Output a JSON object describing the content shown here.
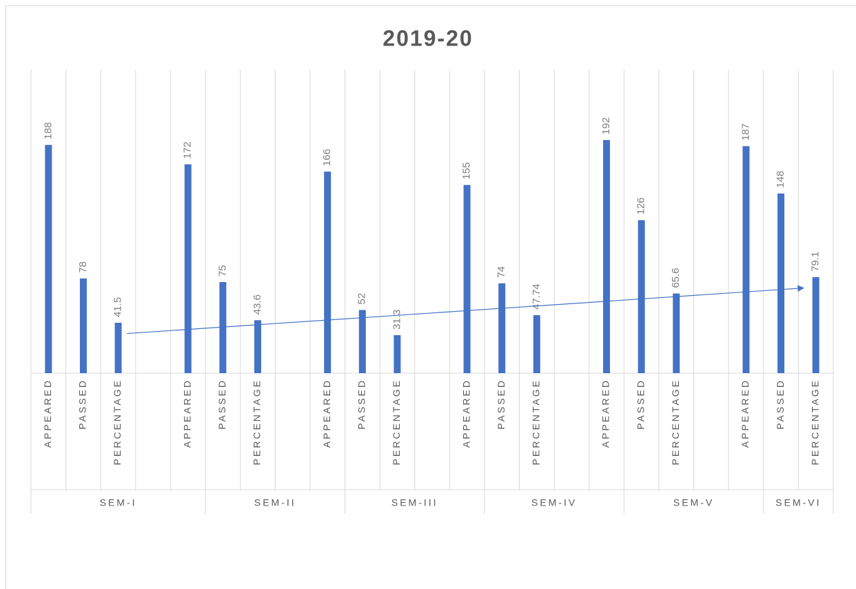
{
  "chart_data": {
    "type": "bar",
    "title": "2019-20",
    "categories": [
      {
        "label": "APPEARED",
        "group": "SEM-I"
      },
      {
        "label": "PASSED",
        "group": "SEM-I"
      },
      {
        "label": "PERCENTAGE",
        "group": "SEM-I"
      },
      {
        "label": null,
        "group": "SEM-I"
      },
      {
        "label": "APPEARED",
        "group": "SEM-I"
      },
      {
        "label": "PASSED",
        "group": "SEM-II"
      },
      {
        "label": "PERCENTAGE",
        "group": "SEM-II"
      },
      {
        "label": null,
        "group": "SEM-II"
      },
      {
        "label": "APPEARED",
        "group": "SEM-II"
      },
      {
        "label": "PASSED",
        "group": "SEM-III"
      },
      {
        "label": "PERCENTAGE",
        "group": "SEM-III"
      },
      {
        "label": null,
        "group": "SEM-III"
      },
      {
        "label": "APPEARED",
        "group": "SEM-III"
      },
      {
        "label": "PASSED",
        "group": "SEM-IV"
      },
      {
        "label": "PERCENTAGE",
        "group": "SEM-IV"
      },
      {
        "label": null,
        "group": "SEM-IV"
      },
      {
        "label": "APPEARED",
        "group": "SEM-IV"
      },
      {
        "label": "PASSED",
        "group": "SEM-V"
      },
      {
        "label": "PERCENTAGE",
        "group": "SEM-V"
      },
      {
        "label": null,
        "group": "SEM-V"
      },
      {
        "label": "APPEARED",
        "group": "SEM-V"
      },
      {
        "label": "PASSED",
        "group": "SEM-VI"
      },
      {
        "label": "PERCENTAGE",
        "group": "SEM-VI"
      }
    ],
    "values": [
      188,
      78,
      41.5,
      null,
      172,
      75,
      43.6,
      null,
      166,
      52,
      31.3,
      null,
      155,
      74,
      47.74,
      null,
      192,
      126,
      65.6,
      null,
      187,
      148,
      79.1
    ],
    "color": "#4472c4",
    "ylim": [
      0,
      250
    ],
    "trendline": true,
    "trendline_category": "PERCENTAGE"
  }
}
